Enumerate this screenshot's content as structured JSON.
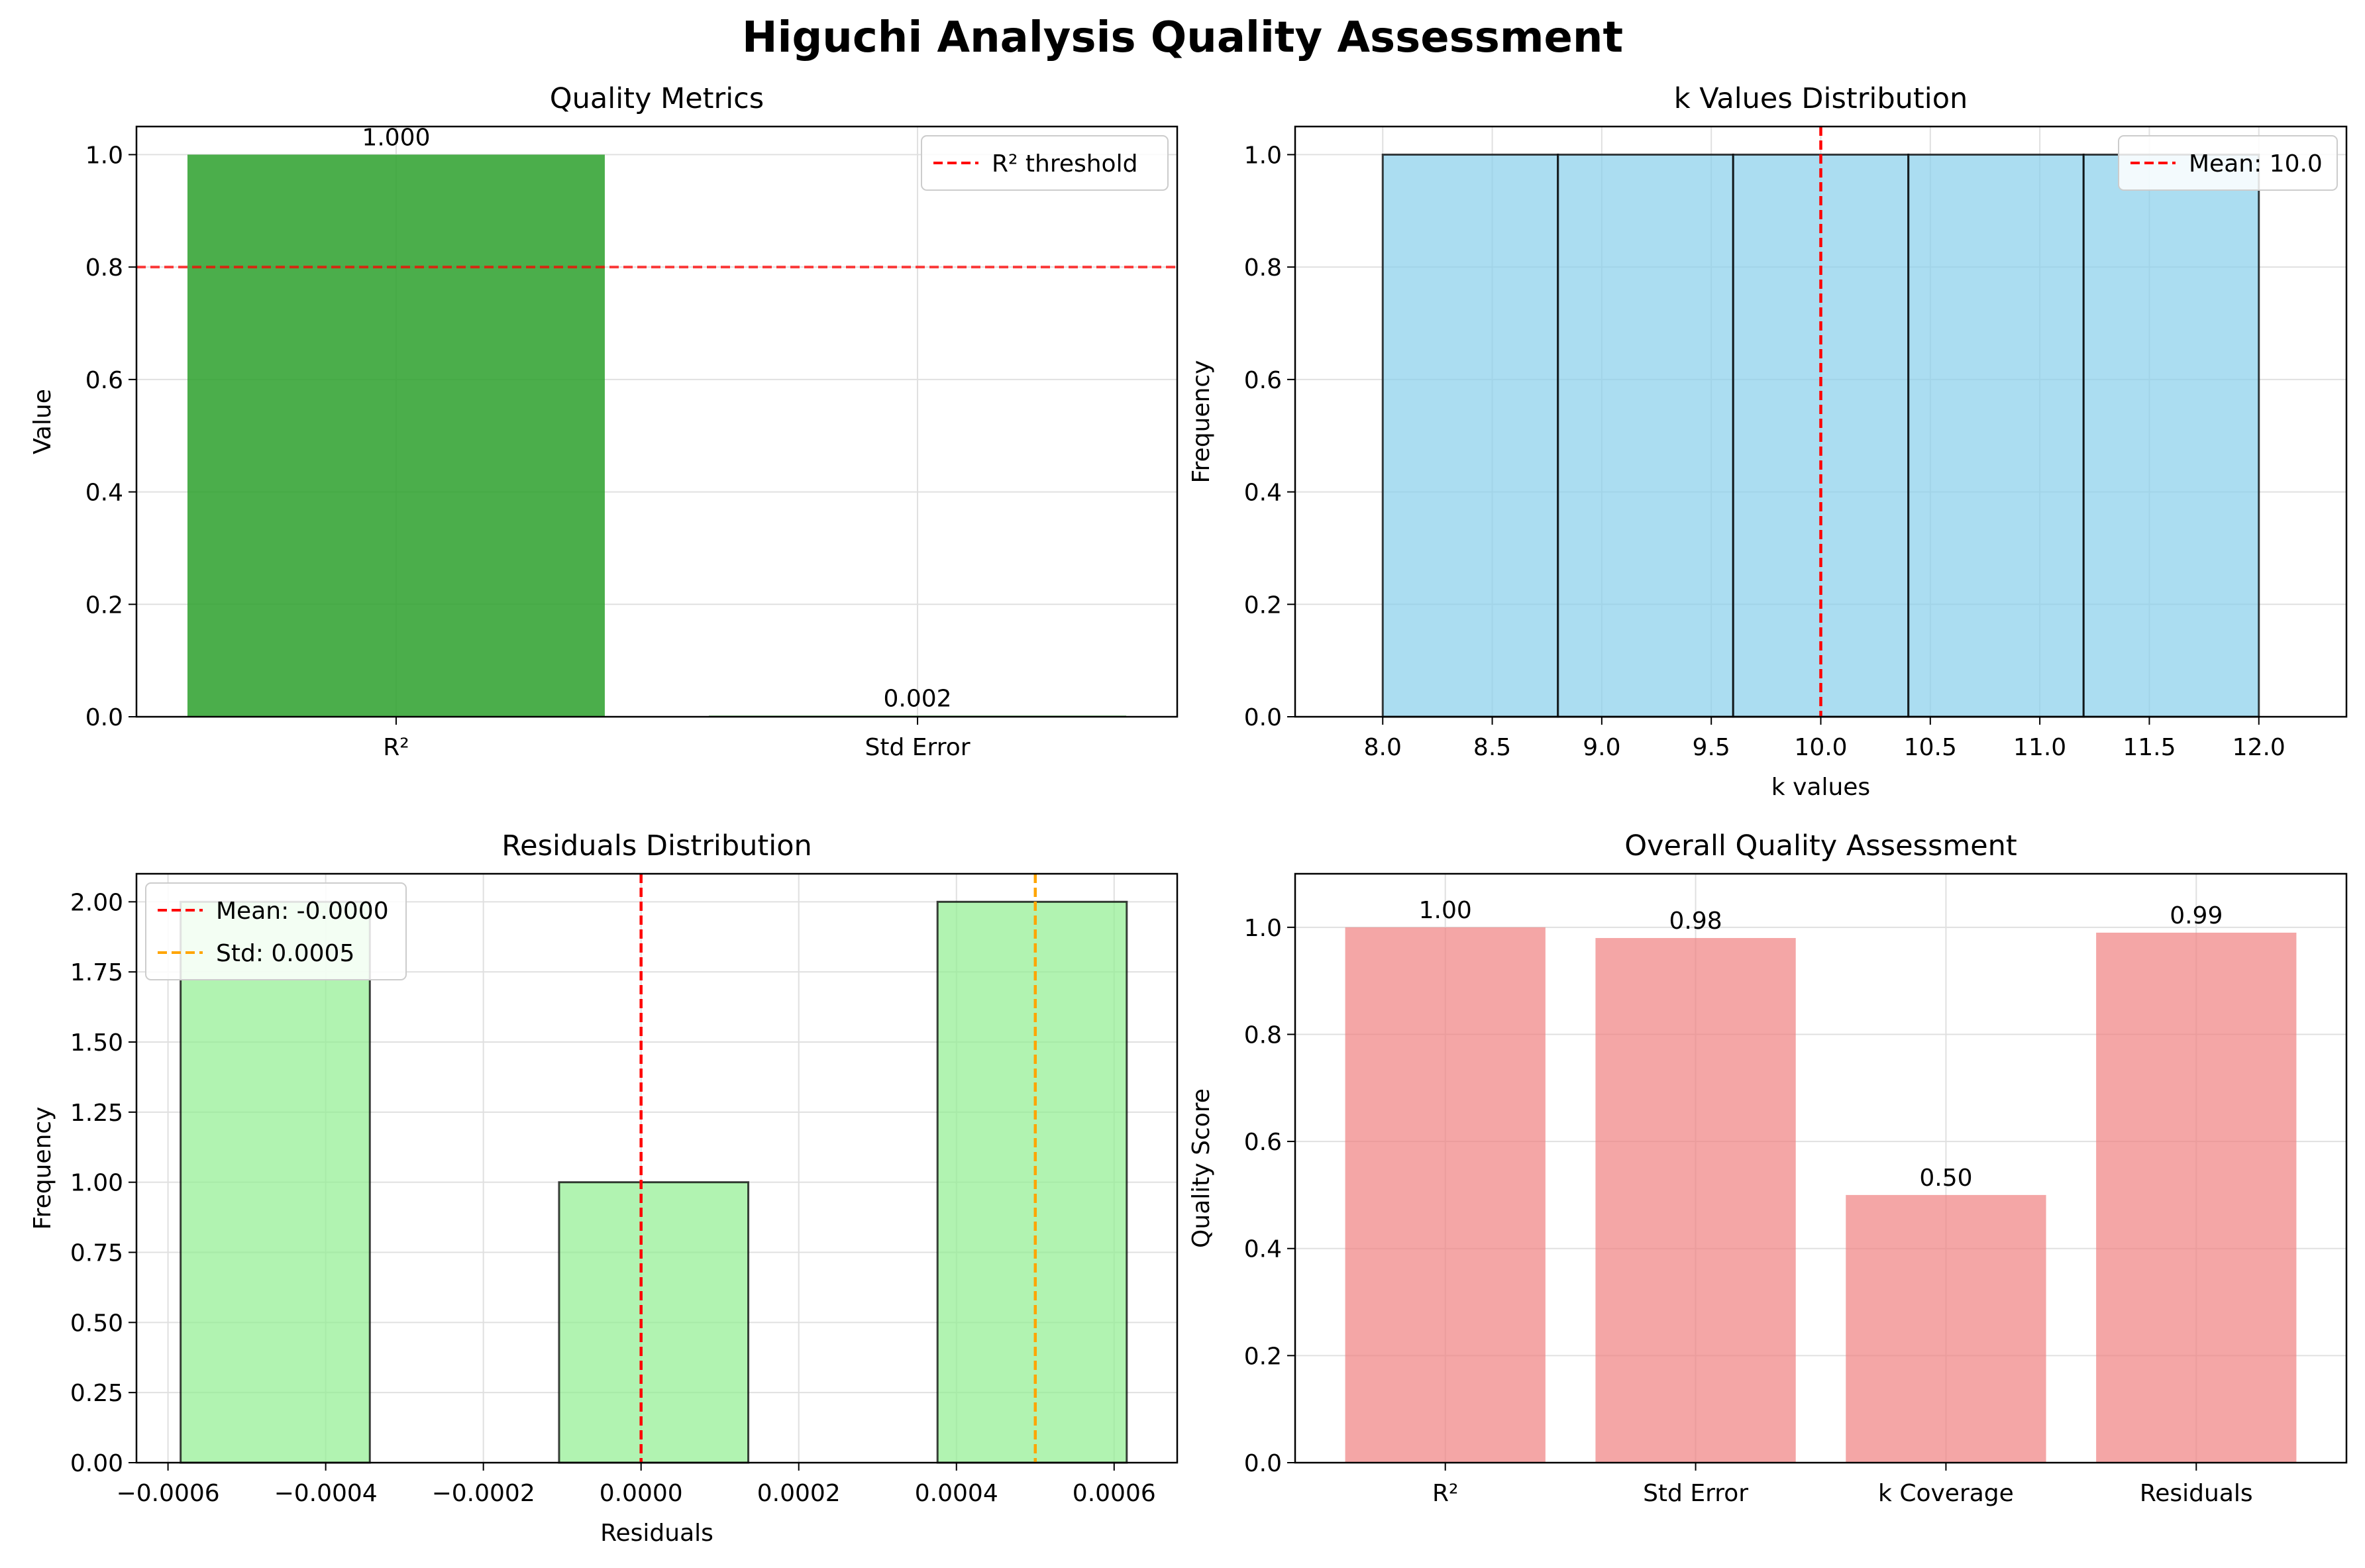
{
  "figure_title": "Higuchi Analysis Quality Assessment",
  "colors": {
    "green_bar": "#2ca02c",
    "light_blue": "#87ceeb",
    "light_green": "#90ee90",
    "light_coral": "#f08080",
    "red_line": "#ff0000",
    "orange_line": "#ffa500",
    "grid": "#e0e0e0"
  },
  "chart_data": [
    {
      "type": "bar",
      "title": "Quality Metrics",
      "xlabel": "",
      "ylabel": "Value",
      "categories": [
        "R²",
        "Std Error"
      ],
      "values": [
        1.0,
        0.002
      ],
      "value_labels": [
        "1.000",
        "0.002"
      ],
      "ylim": [
        0,
        1.05
      ],
      "yticks": [
        "0.0",
        "0.2",
        "0.4",
        "0.6",
        "0.8",
        "1.0"
      ],
      "reference_lines": [
        {
          "axis": "y",
          "value": 0.8,
          "label": "R² threshold",
          "style": "dashed",
          "color": "red"
        }
      ],
      "legend": {
        "position": "upper right",
        "entries": [
          "R² threshold"
        ]
      },
      "grid": true
    },
    {
      "type": "histogram",
      "title": "k Values Distribution",
      "xlabel": "k values",
      "ylabel": "Frequency",
      "bin_edges": [
        8.0,
        8.8,
        9.6,
        10.4,
        11.2,
        12.0
      ],
      "counts": [
        1,
        1,
        1,
        1,
        1
      ],
      "xlim": [
        7.6,
        12.4
      ],
      "ylim": [
        0,
        1.05
      ],
      "xticks": [
        "8.0",
        "8.5",
        "9.0",
        "9.5",
        "10.0",
        "10.5",
        "11.0",
        "11.5",
        "12.0"
      ],
      "yticks": [
        "0.0",
        "0.2",
        "0.4",
        "0.6",
        "0.8",
        "1.0"
      ],
      "reference_lines": [
        {
          "axis": "x",
          "value": 10.0,
          "label": "Mean: 10.0",
          "style": "dashed",
          "color": "red"
        }
      ],
      "legend": {
        "position": "upper right",
        "entries": [
          "Mean: 10.0"
        ]
      },
      "grid": true
    },
    {
      "type": "histogram",
      "title": "Residuals Distribution",
      "xlabel": "Residuals",
      "ylabel": "Frequency",
      "bin_edges": [
        -0.000584,
        -0.000344,
        -0.000104,
        0.000136,
        0.000376,
        0.000616
      ],
      "counts": [
        2,
        0,
        1,
        0,
        2
      ],
      "xlim": [
        -0.00064,
        0.00068
      ],
      "ylim": [
        0,
        2.1
      ],
      "xticks": [
        "−0.0006",
        "−0.0004",
        "−0.0002",
        "0.0000",
        "0.0002",
        "0.0004",
        "0.0006"
      ],
      "yticks": [
        "0.00",
        "0.25",
        "0.50",
        "0.75",
        "1.00",
        "1.25",
        "1.50",
        "1.75",
        "2.00"
      ],
      "reference_lines": [
        {
          "axis": "x",
          "value": 0.0,
          "label": "Mean: -0.0000",
          "style": "dashed",
          "color": "red"
        },
        {
          "axis": "x",
          "value": 0.0005,
          "label": "Std: 0.0005",
          "style": "dashed",
          "color": "orange"
        }
      ],
      "legend": {
        "position": "upper left",
        "entries": [
          "Mean: -0.0000",
          "Std: 0.0005"
        ]
      },
      "grid": true
    },
    {
      "type": "bar",
      "title": "Overall Quality Assessment",
      "xlabel": "",
      "ylabel": "Quality Score",
      "categories": [
        "R²",
        "Std Error",
        "k Coverage",
        "Residuals"
      ],
      "values": [
        1.0,
        0.98,
        0.5,
        0.99
      ],
      "value_labels": [
        "1.00",
        "0.98",
        "0.50",
        "0.99"
      ],
      "ylim": [
        0,
        1.1
      ],
      "yticks": [
        "0.0",
        "0.2",
        "0.4",
        "0.6",
        "0.8",
        "1.0"
      ],
      "grid": true
    }
  ]
}
